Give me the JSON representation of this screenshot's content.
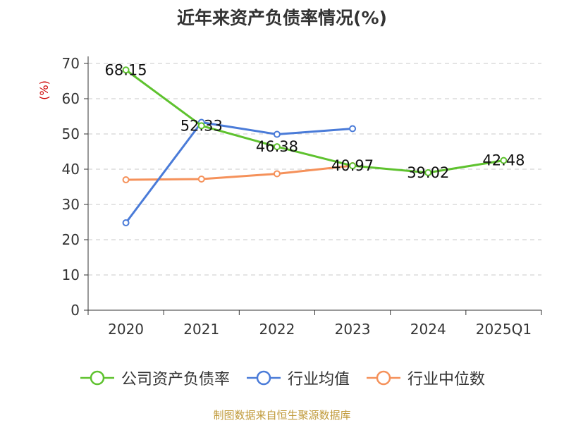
{
  "title": "近年来资产负债率情况(%)",
  "footer": "制图数据来自恒生聚源数据库",
  "chart_data": {
    "type": "line",
    "ylabel": "(%)",
    "ylim": [
      0,
      70
    ],
    "yticks": [
      0,
      10,
      20,
      30,
      40,
      50,
      60,
      70
    ],
    "categories": [
      "2020",
      "2021",
      "2022",
      "2023",
      "2024",
      "2025Q1"
    ],
    "grid": true,
    "legend_position": "bottom",
    "series": [
      {
        "name": "公司资产负债率",
        "color": "#5ec22e",
        "values": [
          68.15,
          52.33,
          46.38,
          40.97,
          39.02,
          42.48
        ],
        "labels": [
          "68.15",
          "52.33",
          "46.38",
          "40.97",
          "39.02",
          "42.48"
        ]
      },
      {
        "name": "行业均值",
        "color": "#4a7bd8",
        "values": [
          24.8,
          53.3,
          49.9,
          51.5,
          null,
          null
        ]
      },
      {
        "name": "行业中位数",
        "color": "#f5915a",
        "values": [
          37.0,
          37.2,
          38.7,
          41.0,
          null,
          null
        ]
      }
    ]
  }
}
